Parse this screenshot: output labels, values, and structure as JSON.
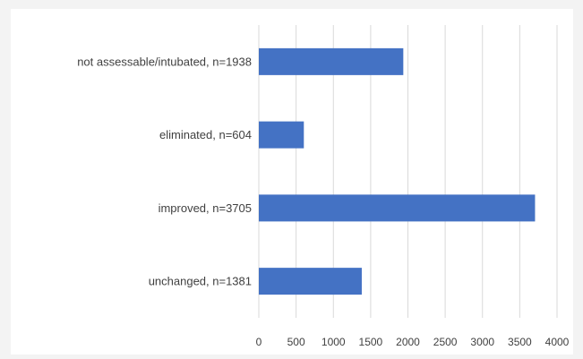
{
  "chart_data": {
    "type": "bar",
    "orientation": "horizontal",
    "categories": [
      "not assessable/intubated, n=1938",
      "eliminated, n=604",
      "improved, n=3705",
      "unchanged, n=1381"
    ],
    "values": [
      1938,
      604,
      3705,
      1381
    ],
    "xlim": [
      0,
      4000
    ],
    "x_ticks": [
      "0",
      "500",
      "1000",
      "1500",
      "2000",
      "2500",
      "3000",
      "3500",
      "4000"
    ],
    "grid": "vertical",
    "legend": "none",
    "bar_color": "#4472c4",
    "grid_color": "#d9d9d9"
  }
}
